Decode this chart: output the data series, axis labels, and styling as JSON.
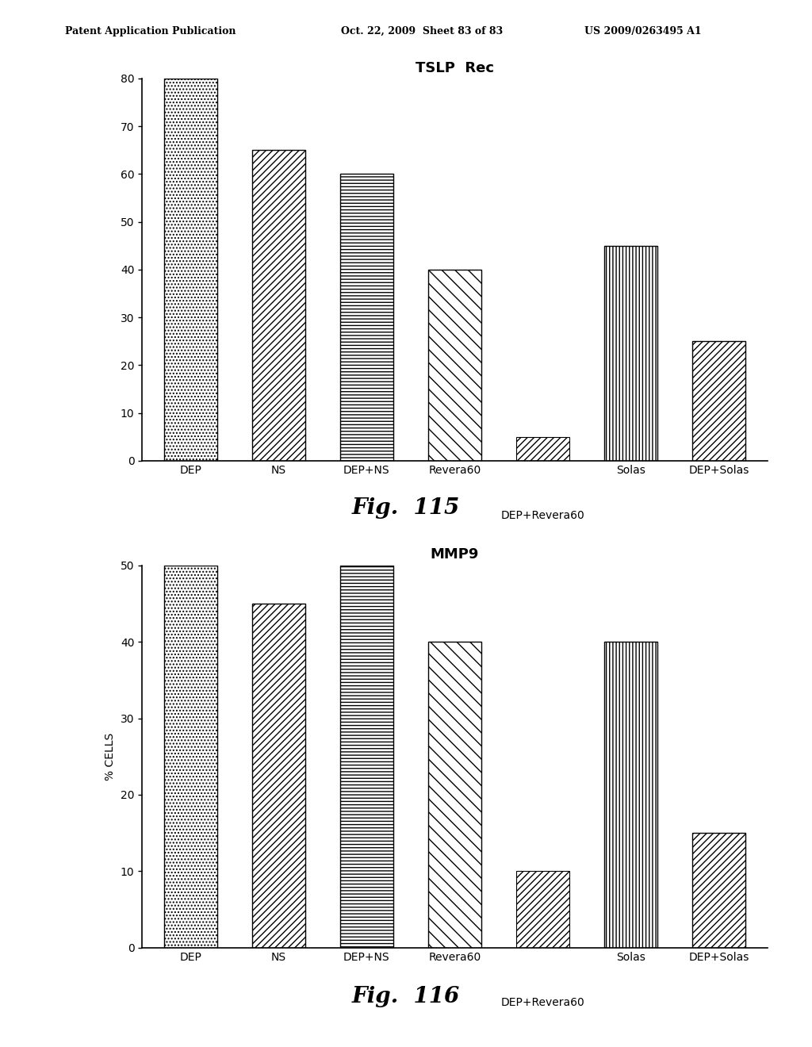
{
  "chart1": {
    "title": "TSLP  Rec",
    "categories": [
      "DEP",
      "NS",
      "DEP+NS",
      "Revera60",
      "DEP+Revera60",
      "Solas",
      "DEP+Solas"
    ],
    "values": [
      80,
      65,
      60,
      40,
      5,
      45,
      25
    ],
    "ylim": [
      0,
      80
    ],
    "yticks": [
      0,
      10,
      20,
      30,
      40,
      50,
      60,
      70,
      80
    ],
    "fig_label": "Fig.  115",
    "xlabel_main": "DEP+Revera60"
  },
  "chart2": {
    "title": "MMP9",
    "categories": [
      "DEP",
      "NS",
      "DEP+NS",
      "Revera60",
      "DEP+Revera60",
      "Solas",
      "DEP+Solas"
    ],
    "values": [
      50,
      45,
      50,
      40,
      10,
      40,
      15
    ],
    "ylim": [
      0,
      50
    ],
    "yticks": [
      0,
      10,
      20,
      30,
      40,
      50
    ],
    "fig_label": "Fig.  116",
    "xlabel_main": "DEP+Revera60",
    "ylabel": "% CELLS"
  },
  "background_color": "#ffffff",
  "header_left": "Patent Application Publication",
  "header_mid": "Oct. 22, 2009  Sheet 83 of 83",
  "header_right": "US 2009/0263495 A1",
  "title_fontsize": 13,
  "tick_fontsize": 10,
  "label_fontsize": 10,
  "fig_label_fontsize": 20
}
